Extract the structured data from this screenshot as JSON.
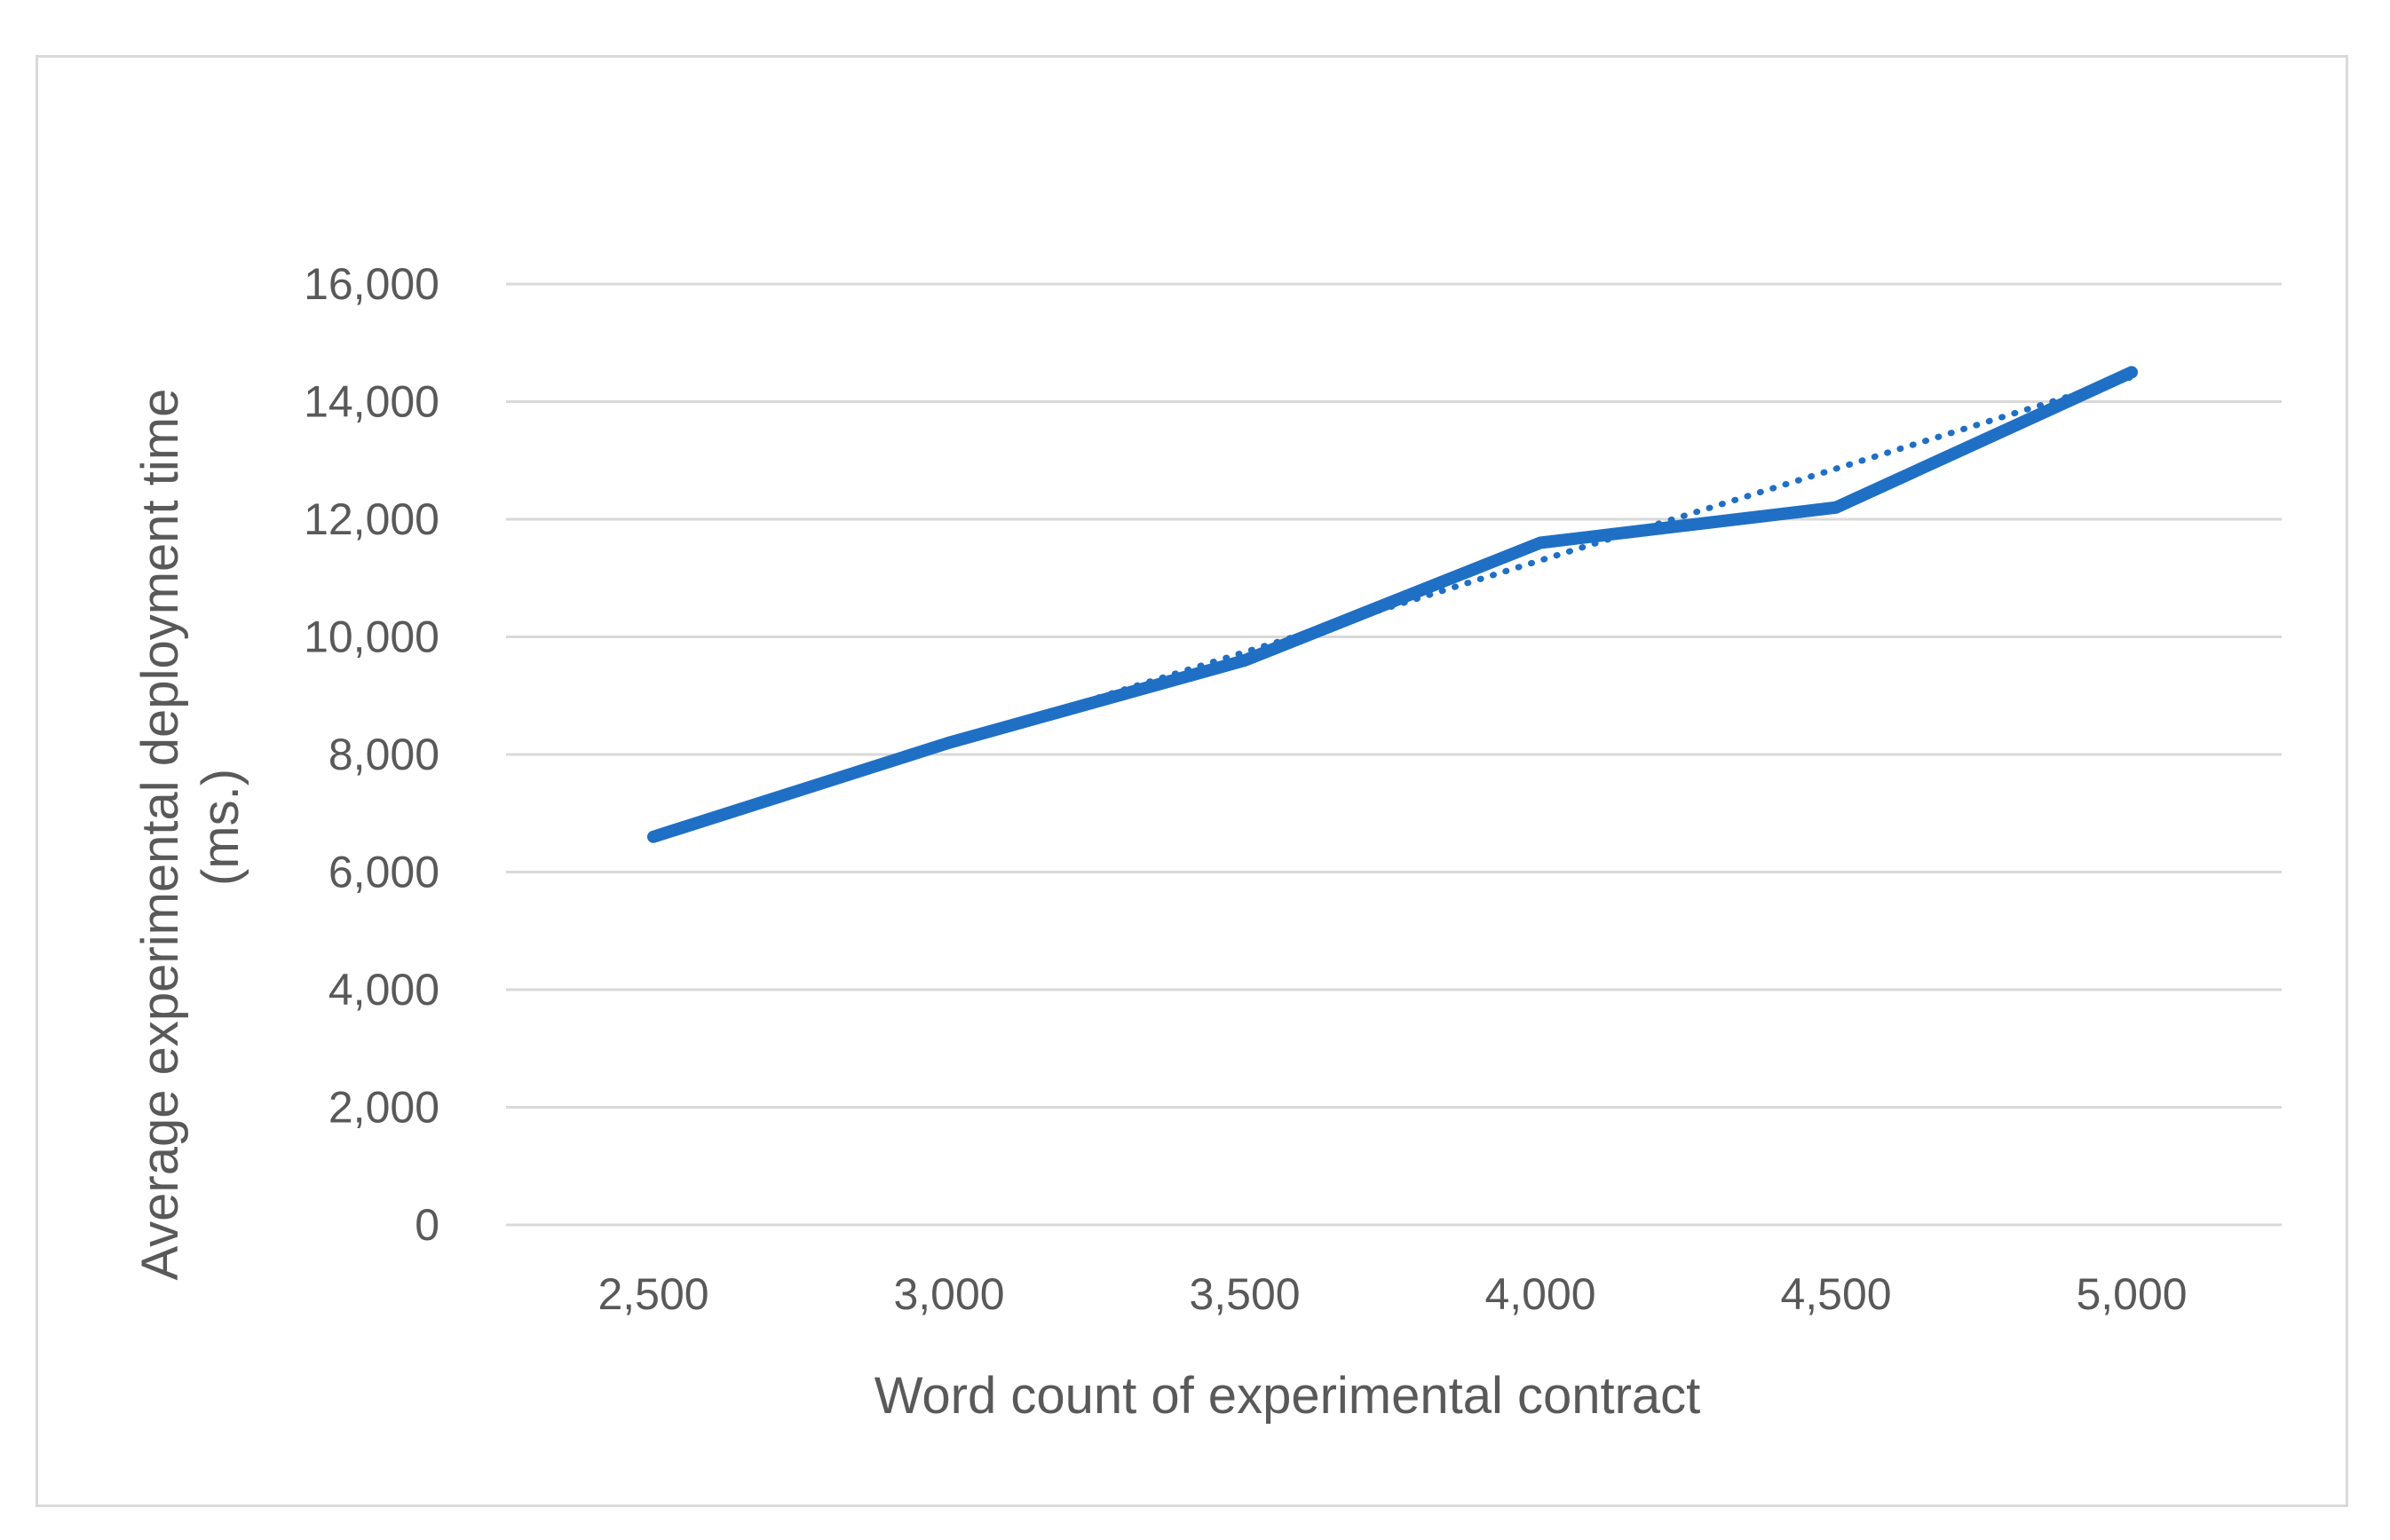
{
  "chart_data": {
    "type": "line",
    "title": "",
    "xlabel": "Word count of experimental contract",
    "ylabel_lines": [
      "Average experimental deployment time",
      "(ms.)"
    ],
    "x": [
      2500,
      3000,
      3500,
      4000,
      4500,
      5000
    ],
    "x_tick_labels": [
      "2,500",
      "3,000",
      "3,500",
      "4,000",
      "4,500",
      "5,000"
    ],
    "y_tick_values": [
      0,
      2000,
      4000,
      6000,
      8000,
      10000,
      12000,
      14000,
      16000
    ],
    "y_tick_labels": [
      "0",
      "2,000",
      "4,000",
      "6,000",
      "8,000",
      "10,000",
      "12,000",
      "14,000",
      "16,000"
    ],
    "ylim": [
      0,
      16000
    ],
    "grid": "horizontal",
    "legend": "none",
    "series": [
      {
        "values": [
          6600,
          8200,
          9600,
          11600,
          12200,
          14500
        ],
        "style": "solid",
        "color": "#1f6fc5"
      },
      {
        "values": [
          6620,
          8180,
          9740,
          11300,
          12860,
          14420
        ],
        "style": "dotted",
        "trendline": "linear",
        "color": "#1f6fc5"
      }
    ]
  }
}
